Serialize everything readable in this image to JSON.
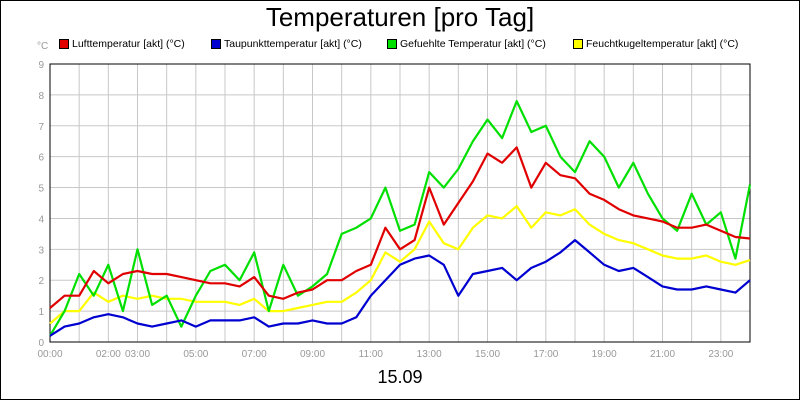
{
  "chart_data": {
    "type": "line",
    "title": "Temperaturen [pro Tag]",
    "unit_label": "°C",
    "date_label": "15.09",
    "xlabel": "",
    "ylabel": "",
    "ylim": [
      0,
      9
    ],
    "xlim": [
      0,
      24
    ],
    "grid": true,
    "legend_placement": "top",
    "x_tick_values": [
      0,
      2,
      3,
      5,
      7,
      9,
      11,
      13,
      15,
      17,
      19,
      21,
      23
    ],
    "x_tick_labels": [
      "00:00",
      "02:00",
      "03:00",
      "05:00",
      "07:00",
      "09:00",
      "11:00",
      "13:00",
      "15:00",
      "17:00",
      "19:00",
      "21:00",
      "23:00"
    ],
    "y_ticks": [
      0,
      1,
      2,
      3,
      4,
      5,
      6,
      7,
      8,
      9
    ],
    "x": [
      0,
      0.5,
      1,
      1.5,
      2,
      2.5,
      3,
      3.5,
      4,
      4.5,
      5,
      5.5,
      6,
      6.5,
      7,
      7.5,
      8,
      8.5,
      9,
      9.5,
      10,
      10.5,
      11,
      11.5,
      12,
      12.5,
      13,
      13.5,
      14,
      14.5,
      15,
      15.5,
      16,
      16.5,
      17,
      17.5,
      18,
      18.5,
      19,
      19.5,
      20,
      20.5,
      21,
      21.5,
      22,
      22.5,
      23,
      23.5,
      24
    ],
    "series": [
      {
        "name": "Lufttemperatur [akt] (°C)",
        "color": "#e00000",
        "values": [
          1.1,
          1.5,
          1.5,
          2.3,
          1.9,
          2.2,
          2.3,
          2.2,
          2.2,
          2.1,
          2.0,
          1.9,
          1.9,
          1.8,
          2.1,
          1.5,
          1.4,
          1.6,
          1.7,
          2.0,
          2.0,
          2.3,
          2.5,
          3.7,
          3.0,
          3.3,
          5.0,
          3.8,
          4.5,
          5.2,
          6.1,
          5.8,
          6.3,
          5.0,
          5.8,
          5.4,
          5.3,
          4.8,
          4.6,
          4.3,
          4.1,
          4.0,
          3.9,
          3.7,
          3.7,
          3.8,
          3.6,
          3.4,
          3.35
        ]
      },
      {
        "name": "Taupunkttemperatur [akt] (°C)",
        "color": "#0000d0",
        "values": [
          0.2,
          0.5,
          0.6,
          0.8,
          0.9,
          0.8,
          0.6,
          0.5,
          0.6,
          0.7,
          0.5,
          0.7,
          0.7,
          0.7,
          0.8,
          0.5,
          0.6,
          0.6,
          0.7,
          0.6,
          0.6,
          0.8,
          1.5,
          2.0,
          2.5,
          2.7,
          2.8,
          2.5,
          1.5,
          2.2,
          2.3,
          2.4,
          2.0,
          2.4,
          2.6,
          2.9,
          3.3,
          2.9,
          2.5,
          2.3,
          2.4,
          2.1,
          1.8,
          1.7,
          1.7,
          1.8,
          1.7,
          1.6,
          2.0
        ]
      },
      {
        "name": "Gefuehlte Temperatur [akt] (°C)",
        "color": "#00e000",
        "values": [
          0.2,
          1.0,
          2.2,
          1.5,
          2.5,
          1.0,
          3.0,
          1.2,
          1.5,
          0.5,
          1.5,
          2.3,
          2.5,
          2.0,
          2.9,
          1.0,
          2.5,
          1.5,
          1.8,
          2.2,
          3.5,
          3.7,
          4.0,
          5.0,
          3.6,
          3.8,
          5.5,
          5.0,
          5.6,
          6.5,
          7.2,
          6.6,
          7.8,
          6.8,
          7.0,
          6.0,
          5.5,
          6.5,
          6.0,
          5.0,
          5.8,
          4.8,
          4.0,
          3.6,
          4.8,
          3.8,
          4.2,
          2.7,
          5.1
        ]
      },
      {
        "name": "Feuchtkugeltemperatur [akt] (°C)",
        "color": "#ffff00",
        "values": [
          0.6,
          1.0,
          1.0,
          1.6,
          1.3,
          1.5,
          1.4,
          1.5,
          1.4,
          1.4,
          1.3,
          1.3,
          1.3,
          1.2,
          1.4,
          1.0,
          1.0,
          1.1,
          1.2,
          1.3,
          1.3,
          1.6,
          2.0,
          2.9,
          2.6,
          3.0,
          3.9,
          3.2,
          3.0,
          3.7,
          4.1,
          4.0,
          4.4,
          3.7,
          4.2,
          4.1,
          4.3,
          3.8,
          3.5,
          3.3,
          3.2,
          3.0,
          2.8,
          2.7,
          2.7,
          2.8,
          2.6,
          2.5,
          2.65
        ]
      }
    ]
  }
}
